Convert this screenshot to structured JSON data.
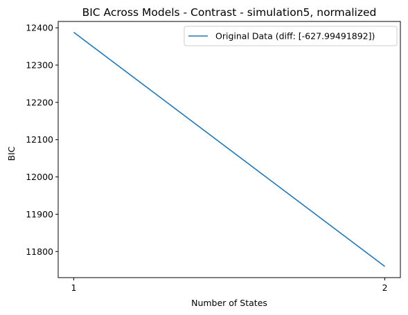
{
  "chart_data": {
    "type": "line",
    "title": "BIC Across Models - Contrast - simulation5, normalized",
    "xlabel": "Number of States",
    "ylabel": "BIC",
    "x": [
      1,
      2
    ],
    "xticks": [
      1,
      2
    ],
    "yticks": [
      11800,
      11900,
      12000,
      12100,
      12200,
      12300,
      12400
    ],
    "xlim": [
      0.95,
      2.05
    ],
    "ylim": [
      11730,
      12417
    ],
    "grid": false,
    "legend_position": "top-right",
    "series": [
      {
        "name": "Original Data (diff: [-627.99491892])",
        "color": "#1f77b4",
        "x": [
          1,
          2
        ],
        "y": [
          12388,
          11760
        ]
      }
    ]
  }
}
